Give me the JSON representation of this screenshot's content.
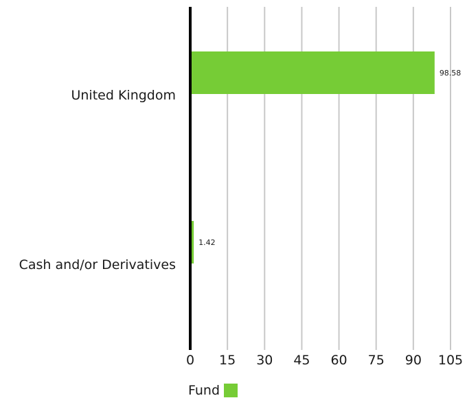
{
  "chart_data": {
    "type": "bar",
    "orientation": "horizontal",
    "categories": [
      "United Kingdom",
      "Cash and/or Derivatives"
    ],
    "series": [
      {
        "name": "Fund",
        "values": [
          98.58,
          1.42
        ],
        "value_labels": [
          "98.58",
          "1.42"
        ],
        "color": "#76cc36"
      }
    ],
    "xlim": [
      0,
      105
    ],
    "xticks": [
      0,
      15,
      30,
      45,
      60,
      75,
      90,
      105
    ],
    "grid": true,
    "legend_position": "bottom-left"
  }
}
